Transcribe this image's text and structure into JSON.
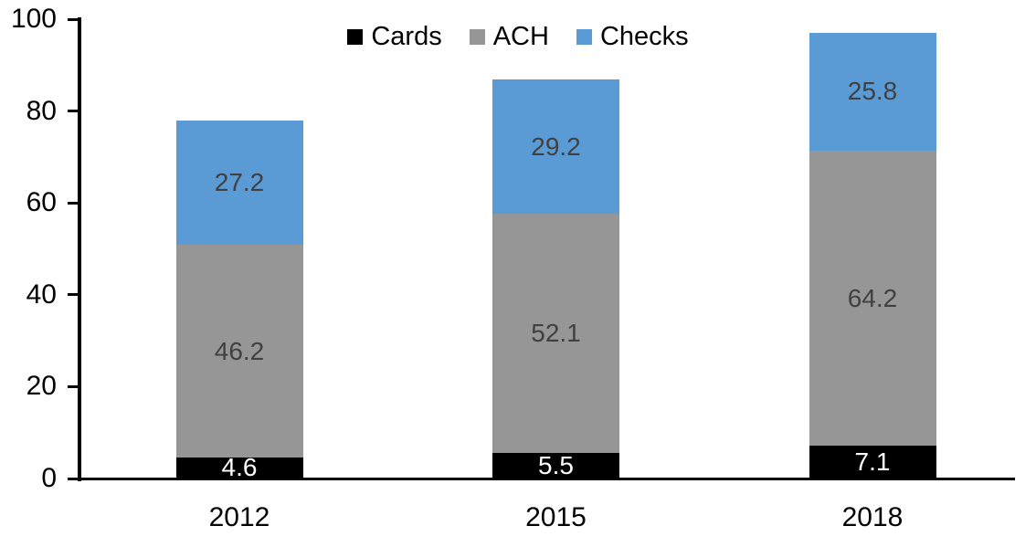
{
  "chart_data": {
    "type": "bar",
    "stacked": true,
    "title": "",
    "xlabel": "",
    "ylabel": "",
    "categories": [
      "2012",
      "2015",
      "2018"
    ],
    "series": [
      {
        "name": "Cards",
        "color": "#000000",
        "label_color": "#FFFFFF",
        "values": [
          4.6,
          5.5,
          7.1
        ]
      },
      {
        "name": "ACH",
        "color": "#969696",
        "label_color": "#404040",
        "values": [
          46.2,
          52.1,
          64.2
        ]
      },
      {
        "name": "Checks",
        "color": "#5B9BD5",
        "label_color": "#404040",
        "values": [
          27.2,
          29.2,
          25.8
        ]
      }
    ],
    "totals": [
      78.0,
      86.8,
      97.1
    ],
    "ylim": [
      0,
      100
    ],
    "yticks": [
      0,
      20,
      40,
      60,
      80,
      100
    ],
    "grid": false,
    "value_labels": true,
    "legend_position": "top-center",
    "axis_color": "#000000",
    "background_color": "#FFFFFF"
  }
}
